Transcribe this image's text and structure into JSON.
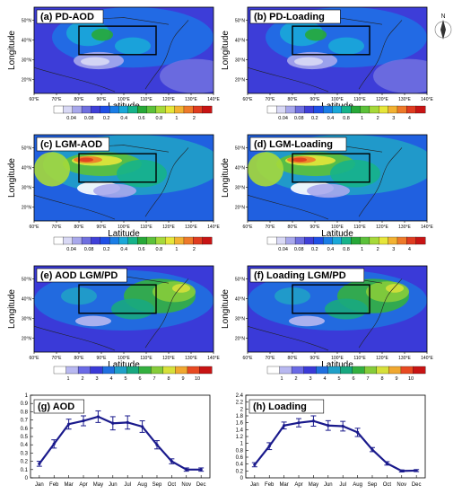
{
  "colors": {
    "colorbar_aod": [
      "#ffffff",
      "#d9d9f5",
      "#a8a8ec",
      "#6f6fe0",
      "#3f3fd8",
      "#1f4fe6",
      "#1a7de6",
      "#1aa8d8",
      "#16b38a",
      "#27a838",
      "#5cc13a",
      "#a6d93a",
      "#e6e63a",
      "#f2b232",
      "#ee7a2a",
      "#e03c20",
      "#c81414"
    ],
    "colorbar_ratio": [
      "#ffffff",
      "#b8b8f0",
      "#6a6ae6",
      "#3a3ad8",
      "#2070e0",
      "#20a0c8",
      "#18a880",
      "#34b040",
      "#86cc3a",
      "#d6e03a",
      "#f0a830",
      "#e84a22",
      "#c81414"
    ],
    "line": "#1a1a8c",
    "box": "#000000"
  },
  "maps": {
    "x_ticks": [
      "60°E",
      "70°E",
      "80°E",
      "90°E",
      "100°E",
      "110°E",
      "120°E",
      "130°E",
      "140°E"
    ],
    "y_ticks": [
      "50°N",
      "40°N",
      "30°N",
      "20°N"
    ],
    "x_label": "Latitude",
    "y_label": "Longitude",
    "panels": [
      {
        "id": "a",
        "title": "(a) PD-AOD",
        "cbar": "aod"
      },
      {
        "id": "b",
        "title": "(b) PD-Loading",
        "cbar": "loading"
      },
      {
        "id": "c",
        "title": "(c) LGM-AOD",
        "cbar": "aod"
      },
      {
        "id": "d",
        "title": "(d) LGM-Loading",
        "cbar": "loading"
      },
      {
        "id": "e",
        "title": "(e) AOD LGM/PD",
        "cbar": "ratio"
      },
      {
        "id": "f",
        "title": "(f) Loading LGM/PD",
        "cbar": "ratio"
      }
    ]
  },
  "colorbars": {
    "aod": [
      "0.04",
      "0.08",
      "0.2",
      "0.4",
      "0.6",
      "0.8",
      "1",
      "2"
    ],
    "loading": [
      "0.04",
      "0.08",
      "0.2",
      "0.4",
      "0.8",
      "1",
      "2",
      "3",
      "4"
    ],
    "ratio": [
      "1",
      "2",
      "3",
      "4",
      "5",
      "6",
      "7",
      "8",
      "9",
      "10"
    ]
  },
  "chart_data": [
    {
      "type": "line",
      "title": "(g) AOD",
      "categories": [
        "Jan",
        "Feb",
        "Mar",
        "Apr",
        "May",
        "Jun",
        "Jul",
        "Aug",
        "Sep",
        "Oct",
        "Nov",
        "Dec"
      ],
      "values": [
        0.17,
        0.41,
        0.65,
        0.69,
        0.74,
        0.66,
        0.67,
        0.62,
        0.4,
        0.2,
        0.1,
        0.1
      ],
      "error": [
        0.03,
        0.05,
        0.06,
        0.06,
        0.07,
        0.08,
        0.08,
        0.07,
        0.05,
        0.03,
        0.02,
        0.02
      ],
      "ylim": [
        0,
        1
      ],
      "yticks": [
        "0",
        "0.1",
        "0.2",
        "0.3",
        "0.4",
        "0.5",
        "0.6",
        "0.7",
        "0.8",
        "0.9",
        "1"
      ]
    },
    {
      "type": "line",
      "title": "(h) Loading",
      "categories": [
        "Jan",
        "Feb",
        "Mar",
        "Apr",
        "May",
        "Jun",
        "Jul",
        "Aug",
        "Sep",
        "Oct",
        "Nov",
        "Dec"
      ],
      "values": [
        0.38,
        0.92,
        1.52,
        1.6,
        1.65,
        1.52,
        1.5,
        1.32,
        0.82,
        0.42,
        0.2,
        0.21
      ],
      "error": [
        0.06,
        0.1,
        0.1,
        0.12,
        0.15,
        0.14,
        0.14,
        0.12,
        0.06,
        0.05,
        0.03,
        0.03
      ],
      "ylim": [
        0,
        2.4
      ],
      "yticks": [
        "0",
        "0.2",
        "0.4",
        "0.6",
        "0.8",
        "1",
        "1.2",
        "1.4",
        "1.6",
        "1.8",
        "2",
        "2.2",
        "2.4"
      ]
    }
  ],
  "compass": {
    "label": "N"
  }
}
